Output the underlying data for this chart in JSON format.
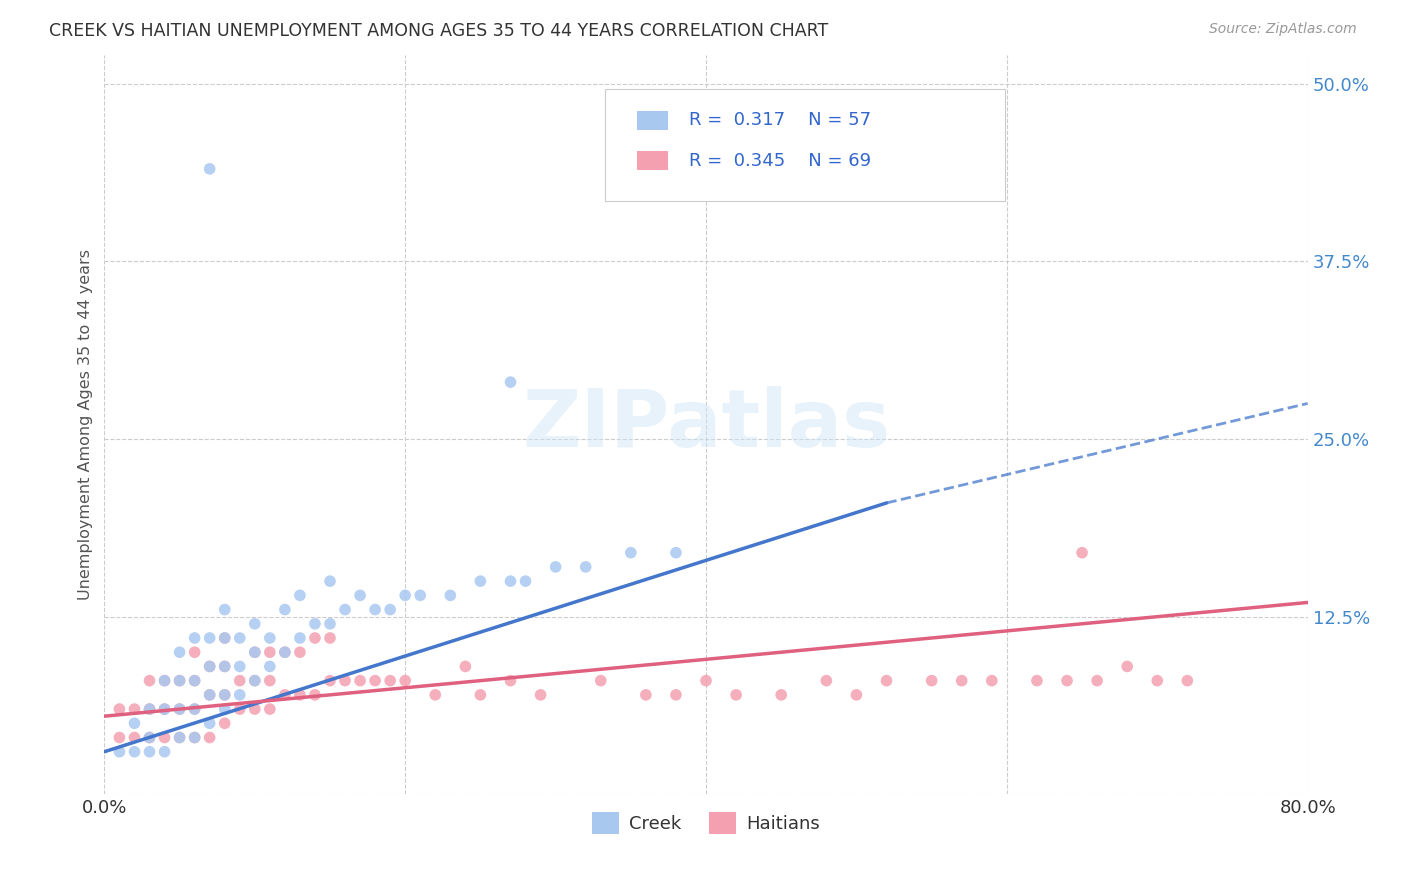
{
  "title": "CREEK VS HAITIAN UNEMPLOYMENT AMONG AGES 35 TO 44 YEARS CORRELATION CHART",
  "source": "Source: ZipAtlas.com",
  "ylabel": "Unemployment Among Ages 35 to 44 years",
  "xlim": [
    0.0,
    0.8
  ],
  "ylim": [
    0.0,
    0.52
  ],
  "ytick_values": [
    0.0,
    0.125,
    0.25,
    0.375,
    0.5
  ],
  "ytick_labels": [
    "",
    "12.5%",
    "25.0%",
    "37.5%",
    "50.0%"
  ],
  "xtick_values": [
    0.0,
    0.2,
    0.4,
    0.6,
    0.8
  ],
  "xtick_labels": [
    "0.0%",
    "",
    "",
    "",
    "80.0%"
  ],
  "creek_color": "#a8c8f0",
  "haitian_color": "#f4a0b0",
  "creek_line_color": "#4477cc",
  "haitian_line_color": "#e06080",
  "creek_R": 0.317,
  "creek_N": 57,
  "haitian_R": 0.345,
  "haitian_N": 69,
  "background_color": "#ffffff",
  "grid_color": "#cccccc",
  "creek_line_solid_end": 0.52,
  "creek_line_start_y": 0.03,
  "creek_line_end_y_solid": 0.205,
  "creek_line_end_y_dashed": 0.275,
  "haitian_line_start_y": 0.055,
  "haitian_line_end_y": 0.135,
  "creek_scatter_x": [
    0.01,
    0.02,
    0.02,
    0.03,
    0.03,
    0.03,
    0.04,
    0.04,
    0.04,
    0.05,
    0.05,
    0.05,
    0.05,
    0.06,
    0.06,
    0.06,
    0.06,
    0.07,
    0.07,
    0.07,
    0.07,
    0.08,
    0.08,
    0.08,
    0.08,
    0.08,
    0.09,
    0.09,
    0.09,
    0.1,
    0.1,
    0.1,
    0.11,
    0.11,
    0.12,
    0.12,
    0.13,
    0.13,
    0.14,
    0.15,
    0.15,
    0.16,
    0.17,
    0.18,
    0.19,
    0.2,
    0.21,
    0.23,
    0.25,
    0.27,
    0.28,
    0.3,
    0.32,
    0.35,
    0.38,
    0.27,
    0.07
  ],
  "creek_scatter_y": [
    0.03,
    0.03,
    0.05,
    0.03,
    0.04,
    0.06,
    0.03,
    0.06,
    0.08,
    0.04,
    0.06,
    0.08,
    0.1,
    0.04,
    0.06,
    0.08,
    0.11,
    0.05,
    0.07,
    0.09,
    0.11,
    0.06,
    0.07,
    0.09,
    0.11,
    0.13,
    0.07,
    0.09,
    0.11,
    0.08,
    0.1,
    0.12,
    0.09,
    0.11,
    0.1,
    0.13,
    0.11,
    0.14,
    0.12,
    0.12,
    0.15,
    0.13,
    0.14,
    0.13,
    0.13,
    0.14,
    0.14,
    0.14,
    0.15,
    0.15,
    0.15,
    0.16,
    0.16,
    0.17,
    0.17,
    0.29,
    0.44
  ],
  "haitian_scatter_x": [
    0.01,
    0.01,
    0.02,
    0.02,
    0.03,
    0.03,
    0.03,
    0.04,
    0.04,
    0.04,
    0.05,
    0.05,
    0.05,
    0.06,
    0.06,
    0.06,
    0.06,
    0.07,
    0.07,
    0.07,
    0.08,
    0.08,
    0.08,
    0.08,
    0.09,
    0.09,
    0.1,
    0.1,
    0.1,
    0.11,
    0.11,
    0.11,
    0.12,
    0.12,
    0.13,
    0.13,
    0.14,
    0.14,
    0.15,
    0.15,
    0.16,
    0.17,
    0.18,
    0.19,
    0.2,
    0.22,
    0.24,
    0.25,
    0.27,
    0.29,
    0.33,
    0.36,
    0.38,
    0.4,
    0.42,
    0.45,
    0.48,
    0.5,
    0.52,
    0.55,
    0.57,
    0.59,
    0.62,
    0.64,
    0.66,
    0.68,
    0.7,
    0.72,
    0.65
  ],
  "haitian_scatter_y": [
    0.04,
    0.06,
    0.04,
    0.06,
    0.04,
    0.06,
    0.08,
    0.04,
    0.06,
    0.08,
    0.04,
    0.06,
    0.08,
    0.04,
    0.06,
    0.08,
    0.1,
    0.04,
    0.07,
    0.09,
    0.05,
    0.07,
    0.09,
    0.11,
    0.06,
    0.08,
    0.06,
    0.08,
    0.1,
    0.06,
    0.08,
    0.1,
    0.07,
    0.1,
    0.07,
    0.1,
    0.07,
    0.11,
    0.08,
    0.11,
    0.08,
    0.08,
    0.08,
    0.08,
    0.08,
    0.07,
    0.09,
    0.07,
    0.08,
    0.07,
    0.08,
    0.07,
    0.07,
    0.08,
    0.07,
    0.07,
    0.08,
    0.07,
    0.08,
    0.08,
    0.08,
    0.08,
    0.08,
    0.08,
    0.08,
    0.09,
    0.08,
    0.08,
    0.17
  ]
}
